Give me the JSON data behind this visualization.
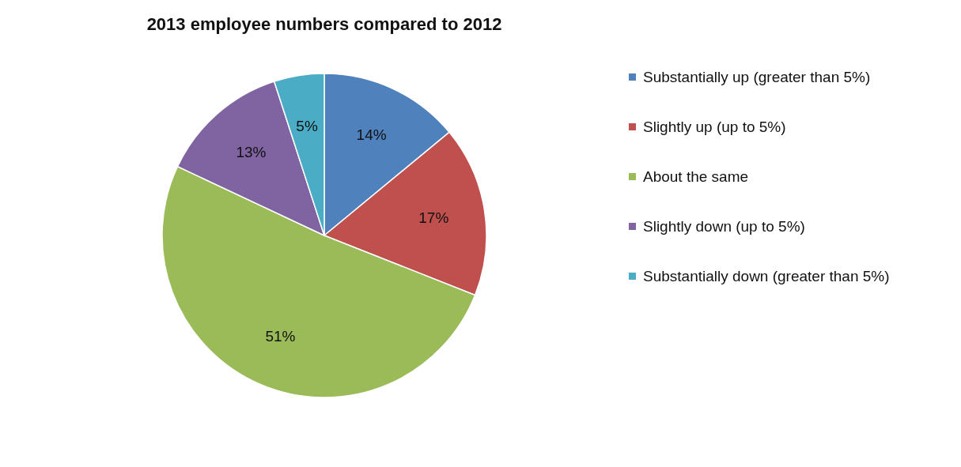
{
  "chart_data": {
    "type": "pie",
    "title": "2013 employee numbers compared to 2012",
    "categories": [
      "Substantially up (greater than 5%)",
      "Slightly up (up to 5%)",
      "About the same",
      "Slightly down (up to 5%)",
      "Substantially down (greater than 5%)"
    ],
    "values": [
      14,
      17,
      51,
      13,
      5
    ],
    "colors": [
      "#4f81bd",
      "#c0504d",
      "#9bbb59",
      "#8064a2",
      "#4bacc6"
    ],
    "value_labels": [
      "14%",
      "17%",
      "51%",
      "13%",
      "5%"
    ],
    "legend": "right"
  }
}
